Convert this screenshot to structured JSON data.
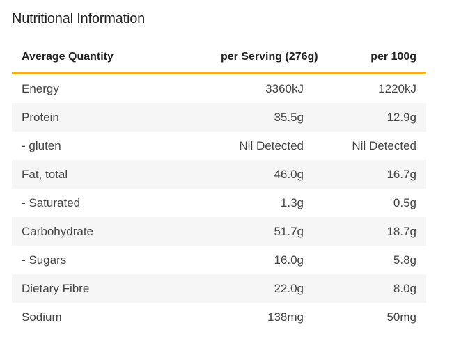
{
  "title": "Nutritional Information",
  "table": {
    "headers": [
      "Average Quantity",
      "per Serving (276g)",
      "per 100g"
    ],
    "rows": [
      [
        "Energy",
        "3360kJ",
        "1220kJ"
      ],
      [
        "Protein",
        "35.5g",
        "12.9g"
      ],
      [
        "- gluten",
        "Nil Detected",
        "Nil Detected"
      ],
      [
        "Fat, total",
        "46.0g",
        "16.7g"
      ],
      [
        "- Saturated",
        "1.3g",
        "0.5g"
      ],
      [
        "Carbohydrate",
        "51.7g",
        "18.7g"
      ],
      [
        "- Sugars",
        "16.0g",
        "5.8g"
      ],
      [
        "Dietary Fibre",
        "22.0g",
        "8.0g"
      ],
      [
        "Sodium",
        "138mg",
        "50mg"
      ]
    ]
  },
  "colors": {
    "accent_line": "#f5b01e",
    "row_shade": "#f6f6f6"
  }
}
